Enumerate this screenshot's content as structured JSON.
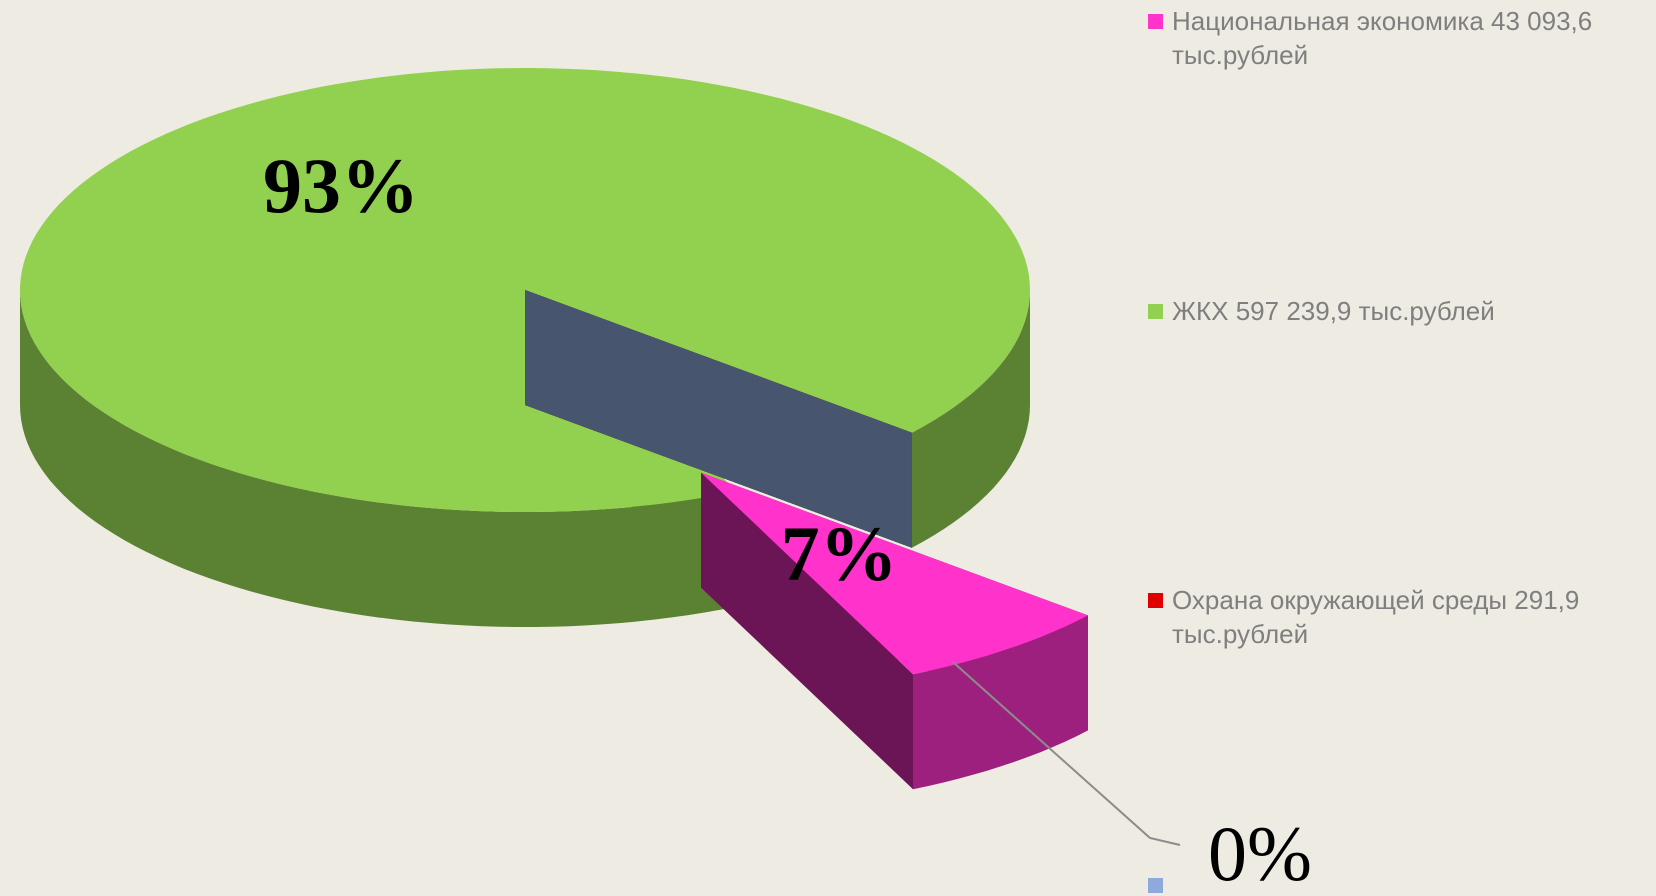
{
  "chart_data": {
    "type": "pie3d",
    "categories": [
      "Национальная экономика 43 093,6 тыс.рублей",
      "ЖКХ 597 239,9 тыс.рублей",
      "Охрана окружающей среды 291,9 тыс.рублей",
      null
    ],
    "values": [
      7,
      93,
      0,
      0
    ],
    "value_labels": [
      "7%",
      "93%",
      "0%",
      null
    ],
    "colors": [
      "#ff33cc",
      "#92d050",
      "#e00000",
      "#8ea9db"
    ]
  }
}
